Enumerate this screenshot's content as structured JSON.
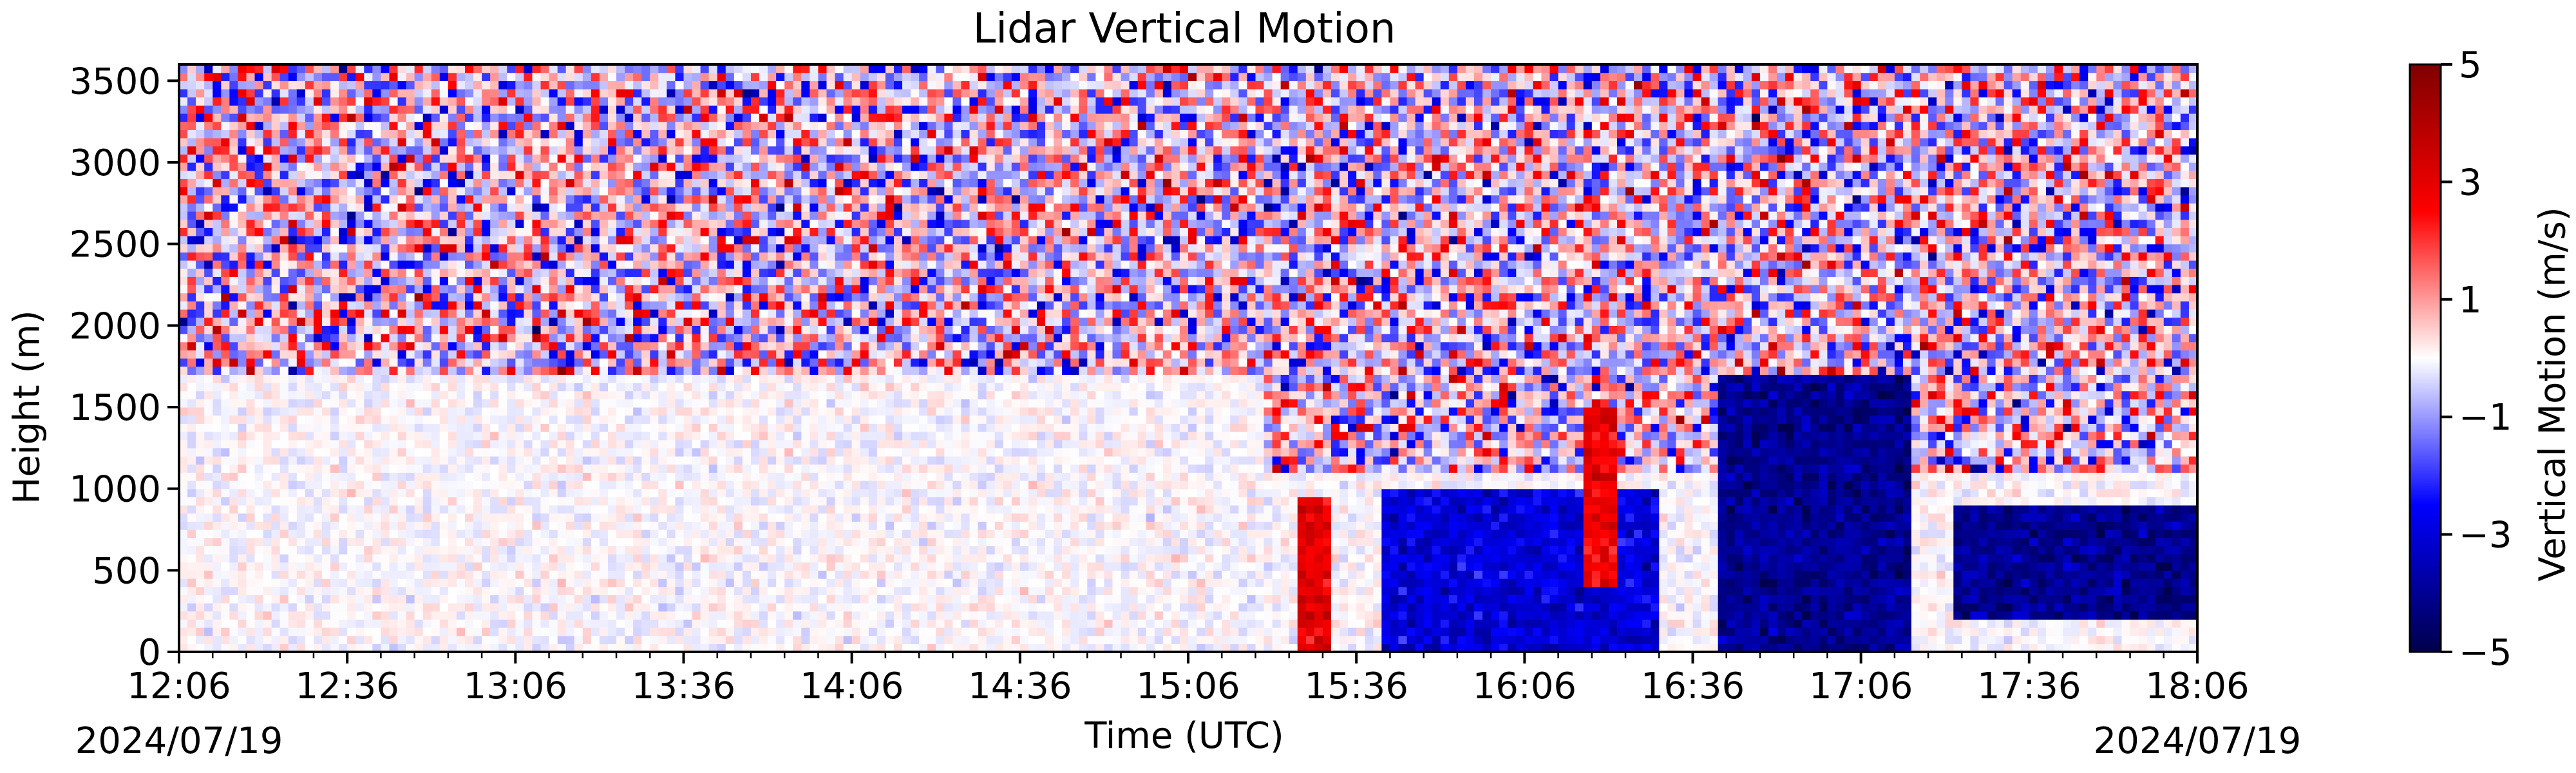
{
  "chart_data": {
    "type": "heatmap",
    "title": "Lidar Vertical Motion",
    "xlabel": "Time (UTC)",
    "ylabel": "Height (m)",
    "x_ticks": [
      "12:06",
      "12:36",
      "13:06",
      "13:36",
      "14:06",
      "14:36",
      "15:06",
      "15:36",
      "16:06",
      "16:36",
      "17:06",
      "17:36",
      "18:06"
    ],
    "x_start_date": "2024/07/19",
    "x_end_date": "2024/07/19",
    "y_ticks": [
      0,
      500,
      1000,
      1500,
      2000,
      2500,
      3000,
      3500
    ],
    "ylim": [
      0,
      3600
    ],
    "xlim": [
      "12:06",
      "18:06"
    ],
    "colorbar": {
      "label": "Vertical Motion (m/s)",
      "ticks": [
        5,
        3,
        1,
        -1,
        -3,
        -5
      ],
      "range": [
        -5,
        5
      ],
      "colormap": "seismic",
      "colors": [
        "#00004c",
        "#0000ff",
        "#ffffff",
        "#ff0000",
        "#7f0000"
      ]
    },
    "features": [
      {
        "time_range": [
          "12:06",
          "15:20"
        ],
        "height_range": [
          0,
          1700
        ],
        "description": "weak motion near zero"
      },
      {
        "time_range": [
          "12:06",
          "15:20"
        ],
        "height_range": [
          1700,
          3600
        ],
        "description": "noisy signal"
      },
      {
        "time_range": [
          "15:20",
          "18:06"
        ],
        "height_range": [
          1100,
          3600
        ],
        "description": "noisy signal"
      },
      {
        "time_range": [
          "15:26",
          "15:32"
        ],
        "height_range": [
          0,
          950
        ],
        "value": 3,
        "description": "updraft"
      },
      {
        "time_range": [
          "15:40",
          "16:30"
        ],
        "height_range": [
          0,
          1000
        ],
        "value": -3,
        "description": "downdraft"
      },
      {
        "time_range": [
          "16:16",
          "16:22"
        ],
        "height_range": [
          400,
          1500
        ],
        "value": 3,
        "description": "updraft"
      },
      {
        "time_range": [
          "16:40",
          "17:15"
        ],
        "height_range": [
          0,
          1700
        ],
        "value": -4,
        "description": "strong downdraft"
      },
      {
        "time_range": [
          "17:22",
          "18:06"
        ],
        "height_range": [
          200,
          900
        ],
        "value": -4,
        "description": "strong downdraft"
      }
    ]
  }
}
